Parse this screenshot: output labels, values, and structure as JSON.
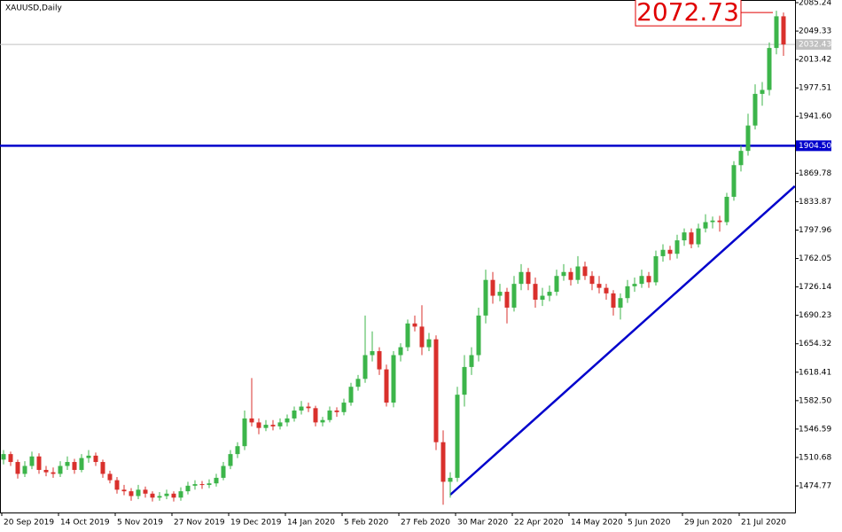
{
  "chart_data": {
    "type": "candlestick",
    "title": "XAUUSD,Daily",
    "up_color": "#3cb54a",
    "down_color": "#d9302c",
    "ylim": [
      1441.2,
      2088.6
    ],
    "yticks": [
      2085.24,
      2049.33,
      2013.42,
      1977.51,
      {
        "value": 1941.6,
        "label": "1941.60"
      },
      1869.78,
      1833.87,
      1797.96,
      1762.05,
      1726.14,
      1690.23,
      1654.32,
      1618.41,
      {
        "value": 1582.5,
        "label": "1582.50"
      },
      1546.59,
      1510.68,
      1474.77
    ],
    "categories": [
      "20 Sep 2019",
      null,
      null,
      null,
      null,
      null,
      null,
      null,
      "14 Oct 2019",
      null,
      null,
      null,
      null,
      null,
      null,
      null,
      "5 Nov 2019",
      null,
      null,
      null,
      null,
      null,
      null,
      null,
      "27 Nov 2019",
      null,
      null,
      null,
      null,
      null,
      null,
      null,
      "19 Dec 2019",
      null,
      null,
      null,
      null,
      null,
      null,
      null,
      "14 Jan 2020",
      null,
      null,
      null,
      null,
      null,
      null,
      null,
      "5 Feb 2020",
      null,
      null,
      null,
      null,
      null,
      null,
      null,
      "27 Feb 2020",
      null,
      null,
      null,
      null,
      null,
      null,
      null,
      "30 Mar 2020",
      null,
      null,
      null,
      null,
      null,
      null,
      null,
      "22 Apr 2020",
      null,
      null,
      null,
      null,
      null,
      null,
      null,
      "14 May 2020",
      null,
      null,
      null,
      null,
      null,
      null,
      null,
      "5 Jun 2020",
      null,
      null,
      null,
      null,
      null,
      null,
      null,
      "29 Jun 2020",
      null,
      null,
      null,
      null,
      null,
      null,
      null,
      "21 Jul 2020",
      null,
      null,
      null,
      null,
      null,
      null
    ],
    "ohlc": [
      [
        1508,
        1520,
        1502,
        1515
      ],
      [
        1515,
        1518,
        1500,
        1505
      ],
      [
        1505,
        1508,
        1484,
        1490
      ],
      [
        1490,
        1506,
        1486,
        1500
      ],
      [
        1500,
        1518,
        1496,
        1512
      ],
      [
        1512,
        1516,
        1490,
        1495
      ],
      [
        1495,
        1500,
        1487,
        1492
      ],
      [
        1492,
        1498,
        1485,
        1490
      ],
      [
        1490,
        1506,
        1486,
        1500
      ],
      [
        1500,
        1512,
        1495,
        1505
      ],
      [
        1505,
        1509,
        1490,
        1495
      ],
      [
        1495,
        1515,
        1492,
        1510
      ],
      [
        1510,
        1520,
        1504,
        1513
      ],
      [
        1513,
        1517,
        1500,
        1505
      ],
      [
        1505,
        1508,
        1485,
        1490
      ],
      [
        1490,
        1494,
        1478,
        1482
      ],
      [
        1482,
        1486,
        1465,
        1470
      ],
      [
        1470,
        1476,
        1463,
        1468
      ],
      [
        1468,
        1472,
        1456,
        1462
      ],
      [
        1462,
        1476,
        1458,
        1470
      ],
      [
        1470,
        1474,
        1460,
        1465
      ],
      [
        1465,
        1468,
        1455,
        1460
      ],
      [
        1460,
        1467,
        1456,
        1462
      ],
      [
        1462,
        1470,
        1458,
        1465
      ],
      [
        1465,
        1468,
        1455,
        1460
      ],
      [
        1460,
        1473,
        1456,
        1468
      ],
      [
        1468,
        1480,
        1464,
        1475
      ],
      [
        1475,
        1482,
        1470,
        1477
      ],
      [
        1477,
        1481,
        1471,
        1476
      ],
      [
        1476,
        1483,
        1472,
        1478
      ],
      [
        1478,
        1490,
        1474,
        1485
      ],
      [
        1485,
        1505,
        1482,
        1500
      ],
      [
        1500,
        1520,
        1496,
        1515
      ],
      [
        1515,
        1530,
        1510,
        1525
      ],
      [
        1525,
        1570,
        1520,
        1560
      ],
      [
        1560,
        1611,
        1550,
        1555
      ],
      [
        1555,
        1560,
        1540,
        1548
      ],
      [
        1548,
        1558,
        1544,
        1552
      ],
      [
        1552,
        1558,
        1545,
        1550
      ],
      [
        1550,
        1560,
        1546,
        1555
      ],
      [
        1555,
        1565,
        1550,
        1560
      ],
      [
        1560,
        1575,
        1556,
        1570
      ],
      [
        1570,
        1582,
        1565,
        1575
      ],
      [
        1575,
        1580,
        1568,
        1573
      ],
      [
        1573,
        1576,
        1550,
        1555
      ],
      [
        1555,
        1562,
        1550,
        1558
      ],
      [
        1558,
        1575,
        1555,
        1570
      ],
      [
        1570,
        1574,
        1562,
        1568
      ],
      [
        1568,
        1585,
        1564,
        1580
      ],
      [
        1580,
        1605,
        1576,
        1600
      ],
      [
        1600,
        1615,
        1595,
        1610
      ],
      [
        1610,
        1690,
        1605,
        1640
      ],
      [
        1640,
        1670,
        1632,
        1645
      ],
      [
        1645,
        1650,
        1615,
        1622
      ],
      [
        1622,
        1628,
        1575,
        1580
      ],
      [
        1580,
        1645,
        1574,
        1640
      ],
      [
        1640,
        1655,
        1632,
        1650
      ],
      [
        1650,
        1685,
        1645,
        1680
      ],
      [
        1680,
        1690,
        1670,
        1676
      ],
      [
        1676,
        1703,
        1640,
        1650
      ],
      [
        1650,
        1668,
        1645,
        1660
      ],
      [
        1660,
        1665,
        1520,
        1530
      ],
      [
        1530,
        1545,
        1451,
        1480
      ],
      [
        1480,
        1492,
        1460,
        1485
      ],
      [
        1485,
        1600,
        1480,
        1590
      ],
      [
        1590,
        1640,
        1575,
        1625
      ],
      [
        1625,
        1650,
        1615,
        1640
      ],
      [
        1640,
        1700,
        1632,
        1690
      ],
      [
        1690,
        1748,
        1680,
        1735
      ],
      [
        1735,
        1745,
        1705,
        1715
      ],
      [
        1715,
        1730,
        1708,
        1720
      ],
      [
        1720,
        1725,
        1680,
        1700
      ],
      [
        1700,
        1740,
        1695,
        1730
      ],
      [
        1730,
        1755,
        1722,
        1745
      ],
      [
        1745,
        1750,
        1722,
        1730
      ],
      [
        1730,
        1738,
        1700,
        1710
      ],
      [
        1710,
        1725,
        1702,
        1715
      ],
      [
        1715,
        1728,
        1708,
        1720
      ],
      [
        1720,
        1748,
        1715,
        1740
      ],
      [
        1740,
        1755,
        1734,
        1745
      ],
      [
        1745,
        1750,
        1728,
        1735
      ],
      [
        1735,
        1765,
        1730,
        1752
      ],
      [
        1752,
        1758,
        1735,
        1740
      ],
      [
        1740,
        1746,
        1722,
        1730
      ],
      [
        1730,
        1740,
        1718,
        1725
      ],
      [
        1725,
        1730,
        1710,
        1718
      ],
      [
        1718,
        1722,
        1690,
        1700
      ],
      [
        1700,
        1718,
        1685,
        1712
      ],
      [
        1712,
        1735,
        1706,
        1727
      ],
      [
        1727,
        1738,
        1720,
        1730
      ],
      [
        1730,
        1748,
        1725,
        1740
      ],
      [
        1740,
        1745,
        1725,
        1732
      ],
      [
        1732,
        1772,
        1728,
        1765
      ],
      [
        1765,
        1780,
        1758,
        1773
      ],
      [
        1773,
        1778,
        1760,
        1768
      ],
      [
        1768,
        1792,
        1762,
        1785
      ],
      [
        1785,
        1800,
        1778,
        1795
      ],
      [
        1795,
        1800,
        1775,
        1780
      ],
      [
        1780,
        1806,
        1776,
        1800
      ],
      [
        1800,
        1818,
        1795,
        1808
      ],
      [
        1808,
        1815,
        1800,
        1810
      ],
      [
        1810,
        1816,
        1796,
        1808
      ],
      [
        1808,
        1845,
        1804,
        1840
      ],
      [
        1840,
        1885,
        1835,
        1880
      ],
      [
        1880,
        1905,
        1872,
        1898
      ],
      [
        1898,
        1945,
        1892,
        1930
      ],
      [
        1930,
        1982,
        1925,
        1970
      ],
      [
        1970,
        1985,
        1955,
        1975
      ],
      [
        1975,
        2035,
        1968,
        2028
      ],
      [
        2028,
        2075,
        2020,
        2068
      ],
      [
        2068,
        2072.73,
        2018,
        2032.43
      ]
    ],
    "level_line": {
      "value": 1904.5,
      "label": "1904.50",
      "color": "#0000cc"
    },
    "price_line": {
      "value": 2032.43,
      "color": "#c0c0c0"
    },
    "high_label": "2072.73",
    "trendline": {
      "x": [
        63,
        111.6
      ],
      "y": [
        1463.6,
        1853.4
      ],
      "color": "#0000cc"
    }
  }
}
